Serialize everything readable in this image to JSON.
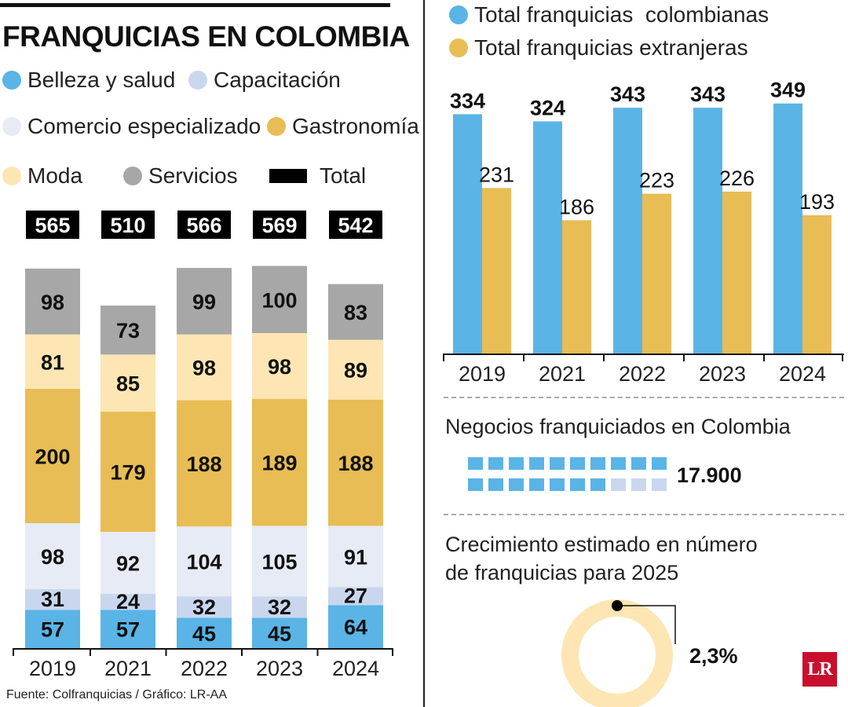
{
  "title": "FRANQUICIAS EN COLOMBIA",
  "legend_left": [
    {
      "label": "Belleza y salud",
      "color": "#5ab4e6"
    },
    {
      "label": "Capacitación",
      "color": "#c9d7ee"
    },
    {
      "label": "Comercio especializado",
      "color": "#e6ebf6"
    },
    {
      "label": "Gastronomía",
      "color": "#e8bd55"
    },
    {
      "label": "Moda",
      "color": "#fde6b3"
    },
    {
      "label": "Servicios",
      "color": "#a7a7a7"
    },
    {
      "label": "Total",
      "color": "#000000"
    }
  ],
  "chart_data": [
    {
      "type": "bar",
      "stacked": true,
      "categories": [
        "2019",
        "2021",
        "2022",
        "2023",
        "2024"
      ],
      "series": [
        {
          "name": "Belleza y salud",
          "values": [
            57,
            57,
            45,
            45,
            64
          ],
          "color": "#5ab4e6"
        },
        {
          "name": "Capacitación",
          "values": [
            31,
            24,
            32,
            32,
            27
          ],
          "color": "#c9d7ee"
        },
        {
          "name": "Comercio especializado",
          "values": [
            98,
            92,
            104,
            105,
            91
          ],
          "color": "#e6ebf6"
        },
        {
          "name": "Gastronomía",
          "values": [
            200,
            179,
            188,
            189,
            188
          ],
          "color": "#e8bd55"
        },
        {
          "name": "Moda",
          "values": [
            81,
            85,
            98,
            98,
            89
          ],
          "color": "#fde6b3"
        },
        {
          "name": "Servicios",
          "values": [
            98,
            73,
            99,
            100,
            83
          ],
          "color": "#a7a7a7"
        }
      ],
      "totals": [
        565,
        510,
        566,
        569,
        542
      ]
    },
    {
      "type": "bar",
      "grouped": true,
      "categories": [
        "2019",
        "2021",
        "2022",
        "2023",
        "2024"
      ],
      "series": [
        {
          "name": "Total franquicias  colombianas",
          "values": [
            334,
            324,
            343,
            343,
            349
          ],
          "color": "#5ab4e6"
        },
        {
          "name": "Total franquicias extranjeras",
          "values": [
            231,
            186,
            223,
            226,
            193
          ],
          "color": "#e8bd55"
        }
      ]
    }
  ],
  "negocios": {
    "label": "Negocios franquiciados en Colombia",
    "value": "17.900",
    "squares_total": 20,
    "squares_filled": 17,
    "fill_color": "#5ab4e6",
    "empty_color": "#c9d7ee"
  },
  "crecimiento": {
    "line1": "Crecimiento estimado en número",
    "line2": "de franquicias para 2025",
    "value": "2,3%",
    "percent": 2.3,
    "ring_color": "#fde6b3"
  },
  "source": "Fuente: Colfranquicias / Gráfico: LR-AA",
  "logo": "LR"
}
